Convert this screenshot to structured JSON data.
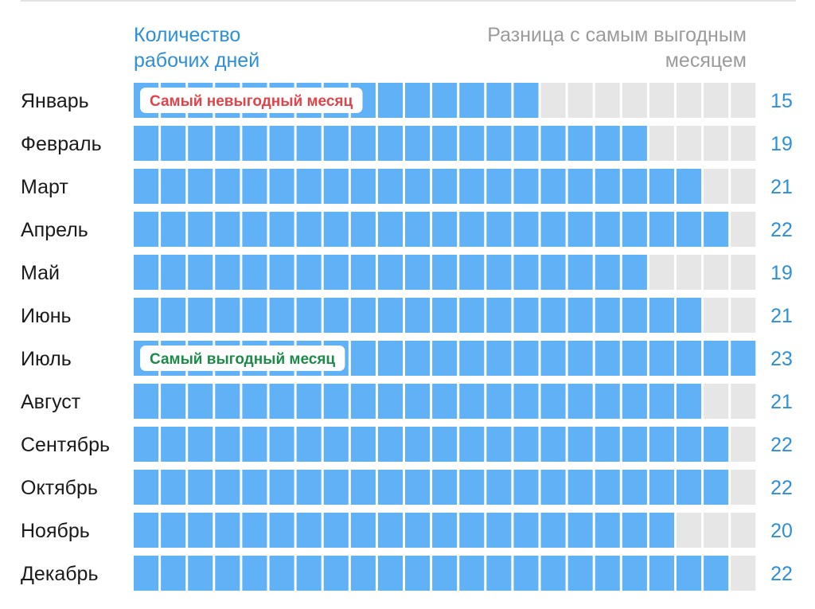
{
  "header": {
    "left_line1": "Количество",
    "left_line2": "рабочих дней",
    "right_line1": "Разница с самым выгодным",
    "right_line2": "месяцем"
  },
  "colors": {
    "filled": "#61b1f7",
    "empty": "#e6e6e6",
    "accent_blue": "#2f8fd6",
    "worst_red": "#e0444a",
    "best_green": "#1d8a4a"
  },
  "annotations": {
    "worst": "Самый невыгодный месяц",
    "best": "Самый выгодный месяц"
  },
  "chart_data": {
    "type": "bar",
    "categories": [
      "Январь",
      "Февраль",
      "Март",
      "Апрель",
      "Май",
      "Июнь",
      "Июль",
      "Август",
      "Сентябрь",
      "Октябрь",
      "Ноябрь",
      "Декабрь"
    ],
    "values": [
      15,
      19,
      21,
      22,
      19,
      21,
      23,
      21,
      22,
      22,
      20,
      22
    ],
    "max": 23,
    "worst_index": 0,
    "best_index": 6
  }
}
